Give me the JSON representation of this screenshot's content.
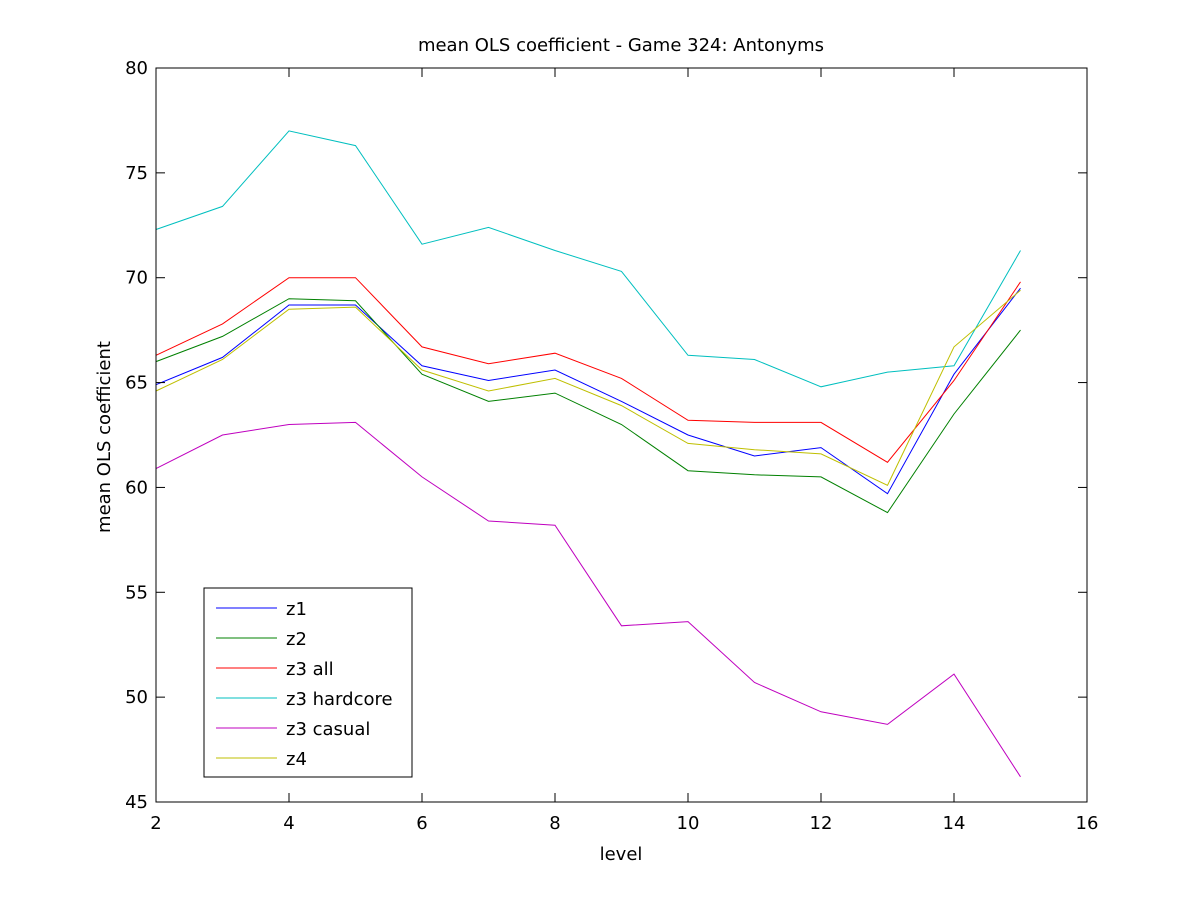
{
  "chart_data": {
    "type": "line",
    "title": "mean OLS coefficient - Game 324: Antonyms",
    "xlabel": "level",
    "ylabel": "mean OLS coefficient",
    "xlim": [
      2,
      16
    ],
    "ylim": [
      45,
      80
    ],
    "xticks": [
      2,
      4,
      6,
      8,
      10,
      12,
      14,
      16
    ],
    "yticks": [
      45,
      50,
      55,
      60,
      65,
      70,
      75,
      80
    ],
    "grid": false,
    "legend_position": "bottom-left",
    "x": [
      2,
      3,
      4,
      5,
      6,
      7,
      8,
      9,
      10,
      11,
      12,
      13,
      14,
      15
    ],
    "series": [
      {
        "name": "z1",
        "color": "#0000ff",
        "values": [
          64.9,
          66.2,
          68.7,
          68.7,
          65.8,
          65.1,
          65.6,
          64.1,
          62.5,
          61.5,
          61.9,
          59.7,
          65.4,
          69.5
        ]
      },
      {
        "name": "z2",
        "color": "#008000",
        "values": [
          66.0,
          67.2,
          69.0,
          68.9,
          65.4,
          64.1,
          64.5,
          63.0,
          60.8,
          60.6,
          60.5,
          58.8,
          63.5,
          67.5
        ]
      },
      {
        "name": "z3 all",
        "color": "#ff0000",
        "values": [
          66.3,
          67.8,
          70.0,
          70.0,
          66.7,
          65.9,
          66.4,
          65.2,
          63.2,
          63.1,
          63.1,
          61.2,
          65.1,
          69.8
        ]
      },
      {
        "name": "z3 hardcore",
        "color": "#00bfbf",
        "values": [
          72.3,
          73.4,
          77.0,
          76.3,
          71.6,
          72.4,
          71.3,
          70.3,
          66.3,
          66.1,
          64.8,
          65.5,
          65.8,
          71.3
        ]
      },
      {
        "name": "z3 casual",
        "color": "#bf00bf",
        "values": [
          60.9,
          62.5,
          63.0,
          63.1,
          60.5,
          58.4,
          58.2,
          53.4,
          53.6,
          50.7,
          49.3,
          48.7,
          51.1,
          46.2
        ]
      },
      {
        "name": "z4",
        "color": "#bfbf00",
        "values": [
          64.6,
          66.1,
          68.5,
          68.6,
          65.6,
          64.6,
          65.2,
          63.9,
          62.1,
          61.8,
          61.6,
          60.1,
          66.7,
          69.4
        ]
      }
    ]
  }
}
